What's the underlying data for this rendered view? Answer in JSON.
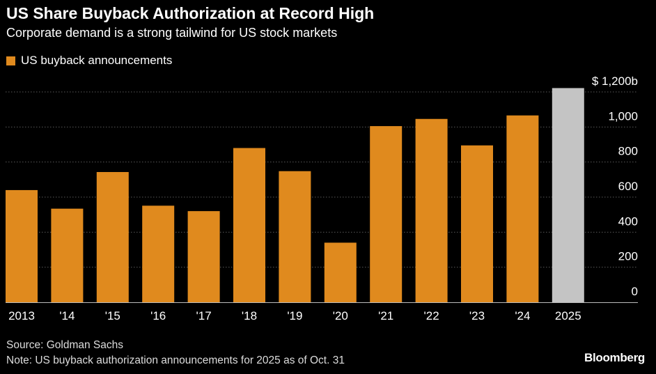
{
  "header": {
    "title": "US Share Buyback Authorization at Record High",
    "subtitle": "Corporate demand is a strong tailwind for US stock markets"
  },
  "legend": {
    "label": "US buyback announcements",
    "color": "#E08A1E"
  },
  "chart_data": {
    "type": "bar",
    "categories": [
      "2013",
      "'14",
      "'15",
      "'16",
      "'17",
      "'18",
      "'19",
      "'20",
      "'21",
      "'22",
      "'23",
      "'24",
      "2025"
    ],
    "values": [
      640,
      534,
      743,
      551,
      520,
      880,
      748,
      340,
      1005,
      1046,
      895,
      1066,
      1222
    ],
    "highlight_colors": [
      "#E08A1E",
      "#E08A1E",
      "#E08A1E",
      "#E08A1E",
      "#E08A1E",
      "#E08A1E",
      "#E08A1E",
      "#E08A1E",
      "#E08A1E",
      "#E08A1E",
      "#E08A1E",
      "#E08A1E",
      "#C4C4C4"
    ],
    "series": [
      {
        "name": "US buyback announcements",
        "values": [
          640,
          534,
          743,
          551,
          520,
          880,
          748,
          340,
          1005,
          1046,
          895,
          1066,
          1222
        ]
      }
    ],
    "yticks": [
      0,
      200,
      400,
      600,
      800,
      1000,
      1200
    ],
    "ytick_labels": [
      "0",
      "200",
      "400",
      "600",
      "800",
      "1,000",
      "$ 1,200b"
    ],
    "ylim": [
      0,
      1200
    ],
    "axis_side": "right",
    "grid": true,
    "legend_position": "top-left"
  },
  "footer": {
    "source": "Source: Goldman Sachs",
    "note": "Note: US buyback authorization announcements for 2025 as of Oct. 31",
    "brand": "Bloomberg"
  }
}
